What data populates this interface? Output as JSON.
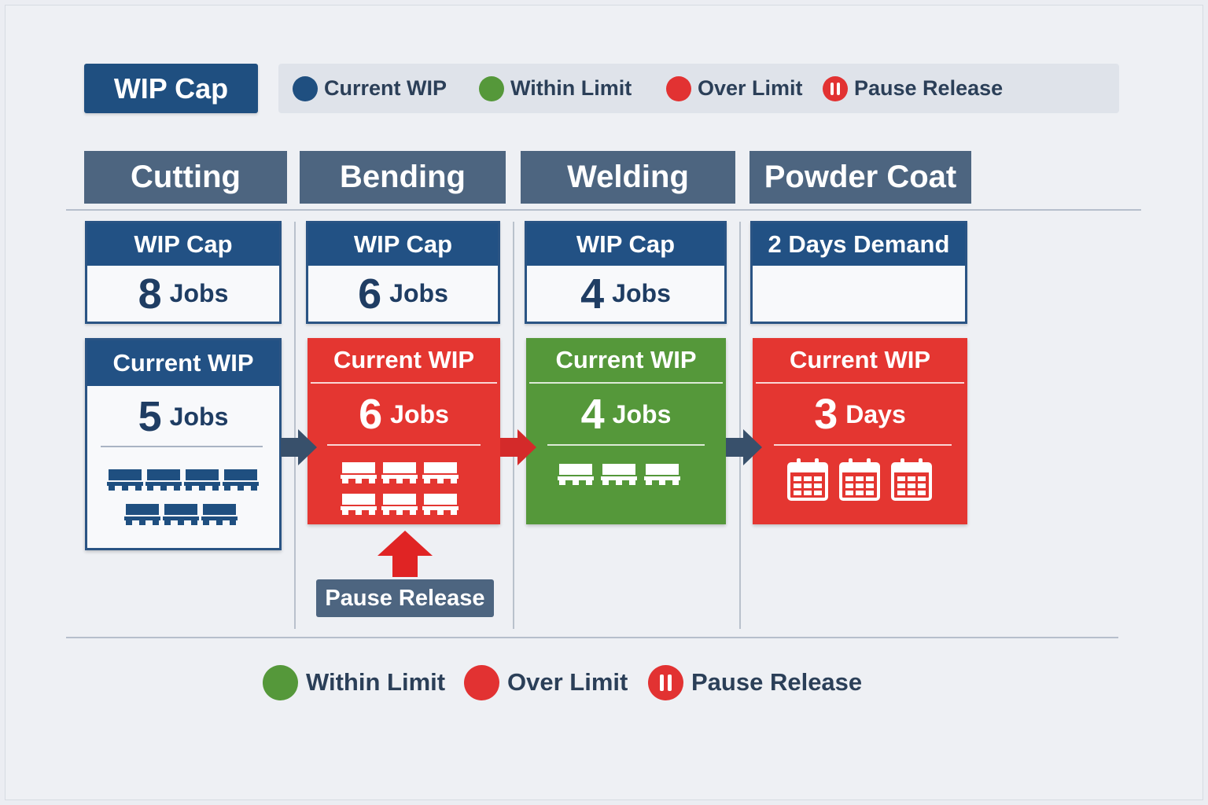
{
  "title": "WIP Cap",
  "legend_top": [
    {
      "label": "Current WIP",
      "color": "#1f4f80",
      "icon": "circle-icon"
    },
    {
      "label": "Within Limit",
      "color": "#55983a",
      "icon": "circle-icon"
    },
    {
      "label": "Over Limit",
      "color": "#e23232",
      "icon": "circle-icon"
    },
    {
      "label": "Pause Release",
      "color": "#e23232",
      "icon": "pause-icon"
    }
  ],
  "stages": [
    {
      "name": "Cutting",
      "cap_title": "WIP Cap",
      "cap_num": "8",
      "cap_unit": "Jobs",
      "wip_title": "Current WIP",
      "wip_num": "5",
      "wip_unit": "Jobs",
      "status": "normal",
      "icon": "pallet-icon",
      "icon_count": 7
    },
    {
      "name": "Bending",
      "cap_title": "WIP Cap",
      "cap_num": "6",
      "cap_unit": "Jobs",
      "wip_title": "Current WIP",
      "wip_num": "6",
      "wip_unit": "Jobs",
      "status": "over",
      "icon": "pallet-icon",
      "icon_count": 6
    },
    {
      "name": "Welding",
      "cap_title": "WIP Cap",
      "cap_num": "4",
      "cap_unit": "Jobs",
      "wip_title": "Current WIP",
      "wip_num": "4",
      "wip_unit": "Jobs",
      "status": "within",
      "icon": "pallet-icon",
      "icon_count": 3
    },
    {
      "name": "Powder Coat",
      "cap_title": "2 Days Demand",
      "cap_num": "",
      "cap_unit": "",
      "wip_title": "Current WIP",
      "wip_num": "3",
      "wip_unit": "Days",
      "status": "over",
      "icon": "calendar-icon",
      "icon_count": 3
    }
  ],
  "pause_release": {
    "label": "Pause Release",
    "arrow_icon": "up-arrow-icon",
    "color": "#e02424"
  },
  "legend_bottom": [
    {
      "label": "Within Limit",
      "color": "#55983a",
      "icon": "circle-icon"
    },
    {
      "label": "Over Limit",
      "color": "#e23232",
      "icon": "circle-icon"
    },
    {
      "label": "Pause Release",
      "color": "#e23232",
      "icon": "pause-icon"
    }
  ]
}
